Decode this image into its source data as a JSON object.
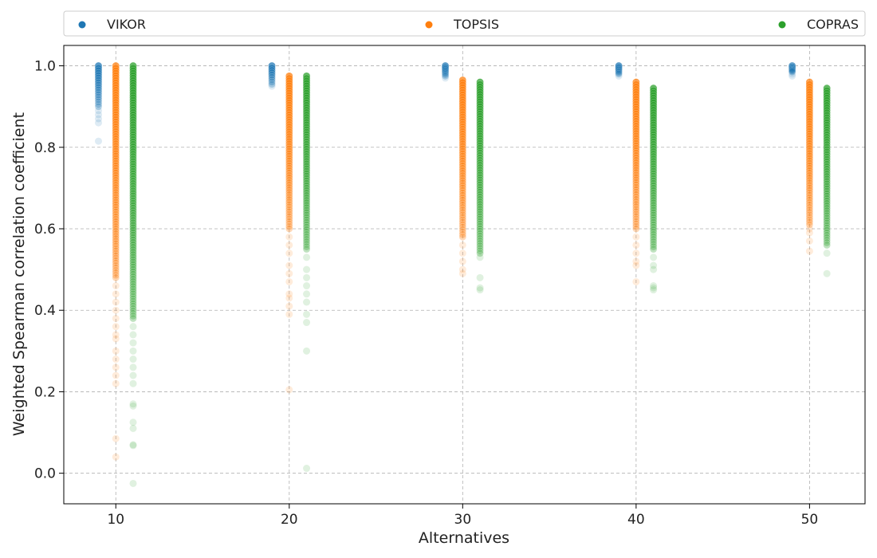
{
  "chart_data": {
    "type": "scatter",
    "xlabel": "Alternatives",
    "ylabel": "Weighted Spearman correlation coefficient",
    "xlim": [
      7,
      53.2
    ],
    "ylim": [
      -0.075,
      1.05
    ],
    "xticks": [
      "10",
      "20",
      "30",
      "40",
      "50"
    ],
    "xtick_values": [
      10,
      20,
      30,
      40,
      50
    ],
    "yticks": [
      "0.0",
      "0.2",
      "0.4",
      "0.6",
      "0.8",
      "1.0"
    ],
    "ytick_values": [
      0.0,
      0.2,
      0.4,
      0.6,
      0.8,
      1.0
    ],
    "grid": true,
    "legend_position": "top",
    "series": [
      {
        "name": "VIKOR",
        "color": "#1f77b4",
        "x_offset": -1,
        "groups": [
          {
            "alternatives": 10,
            "dense": [
              0.9,
              1.0
            ],
            "sparse": [
              0.86,
              0.87,
              0.88,
              0.89,
              0.815
            ]
          },
          {
            "alternatives": 20,
            "dense": [
              0.955,
              1.0
            ],
            "sparse": [
              0.95
            ]
          },
          {
            "alternatives": 30,
            "dense": [
              0.975,
              1.0
            ],
            "sparse": [
              0.97
            ]
          },
          {
            "alternatives": 40,
            "dense": [
              0.98,
              1.0
            ],
            "sparse": [
              0.975
            ]
          },
          {
            "alternatives": 50,
            "dense": [
              0.985,
              1.0
            ],
            "sparse": [
              0.975,
              0.98
            ]
          }
        ]
      },
      {
        "name": "TOPSIS",
        "color": "#ff7f0e",
        "x_offset": 0,
        "groups": [
          {
            "alternatives": 10,
            "dense": [
              0.48,
              1.0
            ],
            "sparse": [
              0.46,
              0.44,
              0.42,
              0.4,
              0.38,
              0.36,
              0.34,
              0.33,
              0.3,
              0.28,
              0.26,
              0.24,
              0.22,
              0.085,
              0.04
            ]
          },
          {
            "alternatives": 20,
            "dense": [
              0.6,
              0.975
            ],
            "sparse": [
              0.58,
              0.56,
              0.54,
              0.51,
              0.49,
              0.47,
              0.44,
              0.43,
              0.41,
              0.39,
              0.205
            ]
          },
          {
            "alternatives": 30,
            "dense": [
              0.58,
              0.965
            ],
            "sparse": [
              0.56,
              0.54,
              0.52,
              0.5,
              0.49
            ]
          },
          {
            "alternatives": 40,
            "dense": [
              0.6,
              0.96
            ],
            "sparse": [
              0.58,
              0.56,
              0.54,
              0.52,
              0.51,
              0.47
            ]
          },
          {
            "alternatives": 50,
            "dense": [
              0.61,
              0.96
            ],
            "sparse": [
              0.6,
              0.59,
              0.57,
              0.545
            ]
          }
        ]
      },
      {
        "name": "COPRAS",
        "color": "#2ca02c",
        "x_offset": 1,
        "groups": [
          {
            "alternatives": 10,
            "dense": [
              0.38,
              1.0
            ],
            "sparse": [
              0.36,
              0.34,
              0.32,
              0.3,
              0.28,
              0.26,
              0.24,
              0.22,
              0.17,
              0.165,
              0.125,
              0.11,
              0.07,
              0.068,
              -0.025
            ]
          },
          {
            "alternatives": 20,
            "dense": [
              0.55,
              0.975
            ],
            "sparse": [
              0.53,
              0.5,
              0.48,
              0.46,
              0.44,
              0.42,
              0.39,
              0.37,
              0.3,
              0.012
            ]
          },
          {
            "alternatives": 30,
            "dense": [
              0.54,
              0.96
            ],
            "sparse": [
              0.53,
              0.48,
              0.455,
              0.45
            ]
          },
          {
            "alternatives": 40,
            "dense": [
              0.55,
              0.945
            ],
            "sparse": [
              0.53,
              0.51,
              0.5,
              0.46,
              0.455,
              0.45
            ]
          },
          {
            "alternatives": 50,
            "dense": [
              0.56,
              0.945
            ],
            "sparse": [
              0.54,
              0.49
            ]
          }
        ]
      }
    ]
  }
}
